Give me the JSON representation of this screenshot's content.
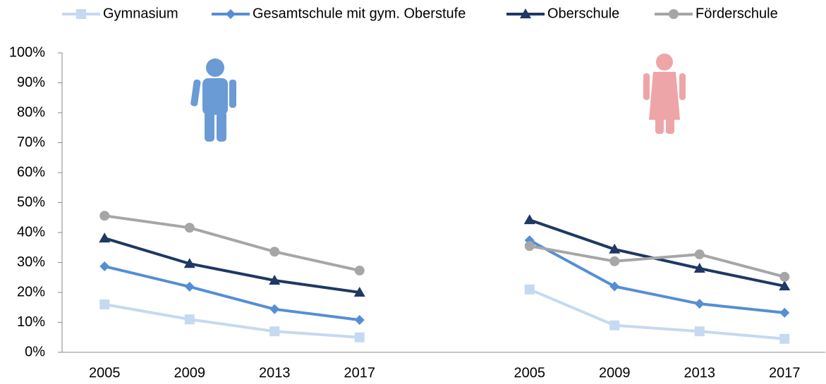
{
  "chart_data": {
    "type": "line",
    "categories": [
      "2005",
      "2009",
      "2013",
      "2017",
      null,
      "2005",
      "2009",
      "2013",
      "2017"
    ],
    "series": [
      {
        "name": "Gymnasium",
        "color": "#c5d9f1",
        "marker": "square",
        "values": [
          16,
          11,
          7,
          5,
          null,
          21,
          9,
          7,
          4.5
        ]
      },
      {
        "name": "Gesamtschule mit gym. Oberstufe",
        "color": "#558ed5",
        "marker": "diamond",
        "values": [
          28.7,
          21.9,
          14.4,
          10.8,
          null,
          37.4,
          22,
          16.2,
          13.2
        ]
      },
      {
        "name": "Oberschule",
        "color": "#1f3864",
        "marker": "triangle",
        "values": [
          38.1,
          29.6,
          24,
          20,
          null,
          44.2,
          34.4,
          28,
          22.1
        ]
      },
      {
        "name": "Förderschule",
        "color": "#a6a6a6",
        "marker": "circle",
        "values": [
          45.6,
          41.6,
          33.6,
          27.3,
          null,
          35.5,
          30.4,
          32.7,
          25.2
        ]
      }
    ],
    "ylim": [
      0,
      100
    ],
    "yticks": [
      {
        "value": 0,
        "label": "0%"
      },
      {
        "value": 10,
        "label": "10%"
      },
      {
        "value": 20,
        "label": "20%"
      },
      {
        "value": 30,
        "label": "30%"
      },
      {
        "value": 40,
        "label": "40%"
      },
      {
        "value": 50,
        "label": "50%"
      },
      {
        "value": 60,
        "label": "60%"
      },
      {
        "value": 70,
        "label": "70%"
      },
      {
        "value": 80,
        "label": "80%"
      },
      {
        "value": 90,
        "label": "90%"
      },
      {
        "value": 100,
        "label": "100%"
      }
    ],
    "grid": false
  }
}
